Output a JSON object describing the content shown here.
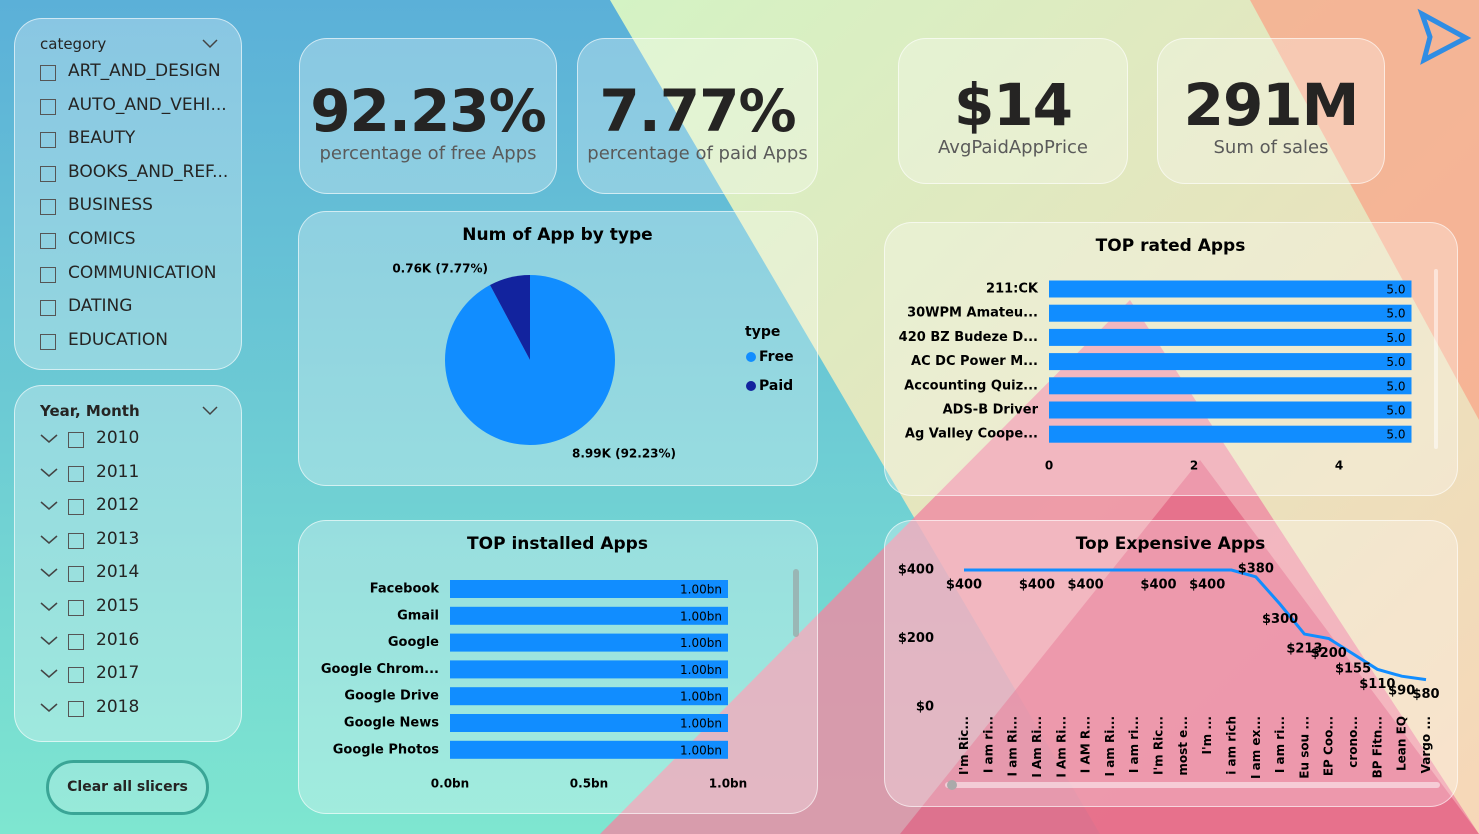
{
  "slicers": [
    {
      "title": "category",
      "items": [
        "ART_AND_DESIGN",
        "AUTO_AND_VEHI...",
        "BEAUTY",
        "BOOKS_AND_REF...",
        "BUSINESS",
        "COMICS",
        "COMMUNICATION",
        "DATING",
        "EDUCATION"
      ]
    },
    {
      "title": "Year, Month",
      "items": [
        "2010",
        "2011",
        "2012",
        "2013",
        "2014",
        "2015",
        "2016",
        "2017",
        "2018"
      ]
    }
  ],
  "button": "Clear all slicers",
  "cards": [
    {
      "value": "92.23%",
      "label": "percentage of free Apps"
    },
    {
      "value": "7.77%",
      "label": "percentage of paid Apps"
    },
    {
      "value": "$14",
      "label": "AvgPaidAppPrice"
    },
    {
      "value": "291M",
      "label": "Sum of sales"
    }
  ],
  "chart_data": [
    {
      "type": "pie",
      "title": "Num of App by type",
      "legend_title": "type",
      "categories": [
        "Free",
        "Paid"
      ],
      "values": [
        8990,
        760
      ],
      "value_labels": [
        "8.99K (92.23%)",
        "0.76K (7.77%)"
      ],
      "colors": [
        "#118dff",
        "#12239e"
      ]
    },
    {
      "type": "hbar",
      "title": "TOP rated Apps",
      "categories": [
        "211:CK",
        "30WPM Amateu...",
        "420 BZ Budeze D...",
        "AC DC Power M...",
        "Accounting Quiz...",
        "ADS-B Driver",
        "Ag Valley Coope..."
      ],
      "values": [
        5,
        5,
        5,
        5,
        5,
        5,
        5
      ],
      "value_labels": [
        "5.0",
        "5.0",
        "5.0",
        "5.0",
        "5.0",
        "5.0",
        "5.0"
      ],
      "color": "#118dff",
      "xlim": [
        0,
        5
      ],
      "xticks": [
        0,
        2,
        4
      ]
    },
    {
      "type": "hbar",
      "title": "TOP installed Apps",
      "categories": [
        "Facebook",
        "Gmail",
        "Google",
        "Google Chrom...",
        "Google Drive",
        "Google News",
        "Google Photos"
      ],
      "values": [
        1000000000,
        1000000000,
        1000000000,
        1000000000,
        1000000000,
        1000000000,
        1000000000
      ],
      "value_labels": [
        "1.00bn",
        "1.00bn",
        "1.00bn",
        "1.00bn",
        "1.00bn",
        "1.00bn",
        "1.00bn"
      ],
      "color": "#118dff",
      "xlim": [
        0,
        1000000000
      ],
      "xticks": [
        {
          "value": 0,
          "label": "0.0bn"
        },
        {
          "value": 500000000,
          "label": "0.5bn"
        },
        {
          "value": 1000000000,
          "label": "1.0bn"
        }
      ]
    },
    {
      "type": "line",
      "title": "Top Expensive Apps",
      "categories": [
        "I'm Ric...",
        "I am ri...",
        "I am Ri...",
        "I Am Ri...",
        "I Am Ri...",
        "I AM R...",
        "I am Ri...",
        "I am ri...",
        "I'm Ric...",
        "most e...",
        "I'm ...",
        "i am rich",
        "I am ex...",
        "I am ri...",
        "Eu sou ...",
        "EP Coo...",
        "crono...",
        "BP Fitn...",
        "Lean EQ",
        "Vargo ..."
      ],
      "values": [
        400,
        400,
        400,
        400,
        400,
        400,
        400,
        400,
        400,
        400,
        400,
        400,
        380,
        300,
        213,
        200,
        155,
        110,
        90,
        80
      ],
      "value_labels": [
        "$400",
        null,
        null,
        "$400",
        null,
        "$400",
        null,
        null,
        "$400",
        null,
        "$400",
        null,
        "$380",
        "$300",
        "$213",
        "$200",
        "$155",
        "$110",
        "$90",
        "$80"
      ],
      "color": "#118dff",
      "ylim": [
        0,
        400
      ],
      "yticks": [
        {
          "value": 0,
          "label": "$0"
        },
        {
          "value": 200,
          "label": "$200"
        },
        {
          "value": 400,
          "label": "$400"
        }
      ]
    }
  ]
}
